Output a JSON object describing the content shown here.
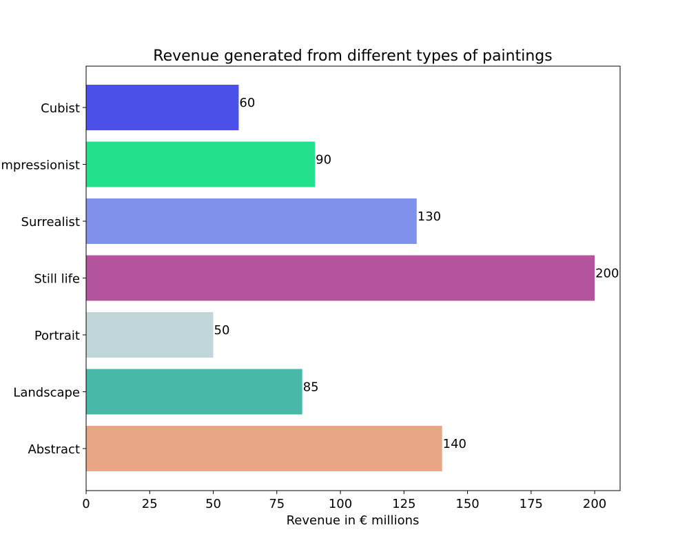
{
  "chart_data": {
    "type": "bar",
    "orientation": "horizontal",
    "title": "Revenue generated from different types of paintings",
    "xlabel": "Revenue in € millions",
    "ylabel": "",
    "categories": [
      "Abstract",
      "Landscape",
      "Portrait",
      "Still life",
      "Surrealist",
      "Impressionist",
      "Cubist"
    ],
    "values": [
      140,
      85,
      50,
      200,
      130,
      90,
      60
    ],
    "colors": [
      "#e8a684",
      "#48b8a8",
      "#c1d6d8",
      "#b4539e",
      "#7f91eb",
      "#22e08c",
      "#4b50e8"
    ],
    "xlim": [
      0,
      210
    ],
    "xticks": [
      0,
      25,
      50,
      75,
      100,
      125,
      150,
      175,
      200
    ],
    "grid": false,
    "legend": "none"
  }
}
